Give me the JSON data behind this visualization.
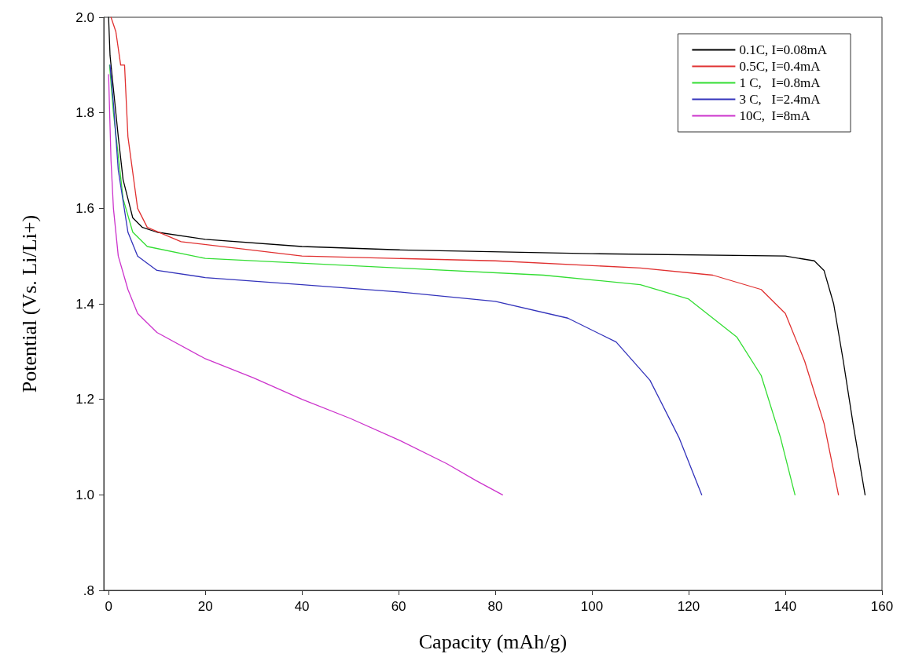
{
  "chart_data": {
    "type": "line",
    "xlabel": "Capacity (mAh/g)",
    "ylabel": "Potential (Vs. Li/Li+)",
    "xlim": [
      -1,
      160
    ],
    "xticks": [
      0,
      20,
      40,
      60,
      80,
      100,
      120,
      140,
      160
    ],
    "ylim": [
      0.8,
      2.0
    ],
    "yticks": [
      {
        "value": 0.8,
        "label": ".8"
      },
      {
        "value": 1.0,
        "label": "1.0"
      },
      1.2,
      1.4,
      1.6,
      1.8,
      {
        "value": 2.0,
        "label": "2.0"
      }
    ],
    "grid": false,
    "legend": "top right",
    "marker": "none",
    "line_style": "solid",
    "series": [
      {
        "name": "0.1C, I=0.08mA",
        "color": "#000000",
        "x": [
          0,
          0.3,
          1,
          2,
          3,
          5,
          7,
          10,
          20,
          40,
          60,
          100,
          140,
          146,
          148,
          150,
          152,
          154,
          156.5
        ],
        "values": [
          2.0,
          1.92,
          1.85,
          1.75,
          1.66,
          1.58,
          1.56,
          1.55,
          1.535,
          1.52,
          1.513,
          1.505,
          1.5,
          1.49,
          1.47,
          1.4,
          1.28,
          1.15,
          1.0
        ]
      },
      {
        "name": "0.5C, I=0.4mA",
        "color": "#e03030",
        "x": [
          0.5,
          1.5,
          2.5,
          3.3,
          4,
          6,
          8,
          15,
          40,
          80,
          110,
          125,
          135,
          140,
          144,
          148,
          151
        ],
        "values": [
          2.0,
          1.97,
          1.9,
          1.9,
          1.75,
          1.6,
          1.56,
          1.53,
          1.5,
          1.49,
          1.475,
          1.46,
          1.43,
          1.38,
          1.28,
          1.15,
          1.0
        ]
      },
      {
        "name": "1 C,   I=0.8mA",
        "color": "#33dd33",
        "x": [
          0.2,
          1,
          3,
          5,
          8,
          20,
          60,
          90,
          110,
          120,
          130,
          135,
          139,
          142
        ],
        "values": [
          1.9,
          1.8,
          1.62,
          1.55,
          1.52,
          1.495,
          1.475,
          1.46,
          1.44,
          1.41,
          1.33,
          1.25,
          1.12,
          1.0
        ]
      },
      {
        "name": "3 C,   I=2.4mA",
        "color": "#3333bb",
        "x": [
          0.3,
          1,
          2,
          4,
          6,
          10,
          20,
          40,
          60,
          80,
          95,
          105,
          112,
          118,
          122.7
        ],
        "values": [
          1.9,
          1.82,
          1.68,
          1.55,
          1.5,
          1.47,
          1.455,
          1.44,
          1.425,
          1.405,
          1.37,
          1.32,
          1.24,
          1.12,
          1.0
        ]
      },
      {
        "name": "10C,  I=8mA",
        "color": "#cc33cc",
        "x": [
          0,
          0.5,
          1,
          2,
          4,
          6,
          10,
          20,
          30,
          40,
          50,
          60,
          70,
          76,
          81.5
        ],
        "values": [
          1.88,
          1.7,
          1.6,
          1.5,
          1.43,
          1.38,
          1.34,
          1.285,
          1.245,
          1.2,
          1.16,
          1.115,
          1.065,
          1.03,
          1.0
        ]
      }
    ]
  }
}
